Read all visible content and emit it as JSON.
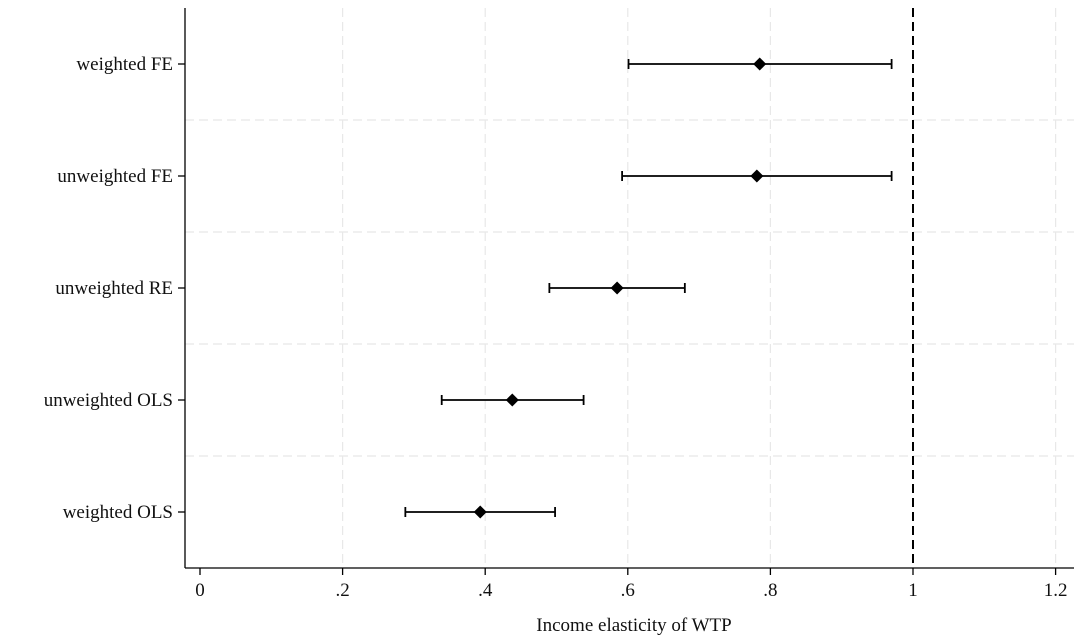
{
  "chart_data": {
    "type": "scatter",
    "subtype": "coefficient-plot",
    "title": "",
    "xlabel": "Income elasticity of WTP",
    "ylabel": "",
    "xlim": [
      -0.02,
      1.22
    ],
    "x_ticks": [
      {
        "value": 0,
        "label": "0"
      },
      {
        "value": 0.2,
        "label": ".2"
      },
      {
        "value": 0.4,
        "label": ".4"
      },
      {
        "value": 0.6,
        "label": ".6"
      },
      {
        "value": 0.8,
        "label": ".8"
      },
      {
        "value": 1.0,
        "label": "1"
      },
      {
        "value": 1.2,
        "label": "1.2"
      }
    ],
    "reference_line": {
      "x": 1.0,
      "style": "dashed"
    },
    "grid": true,
    "marker": "diamond",
    "colors": {
      "marker": "#000000",
      "grid": "#e8e8e8",
      "axis": "#000000"
    },
    "estimates": [
      {
        "label": "weighted FE",
        "estimate": 0.785,
        "ci_low": 0.601,
        "ci_high": 0.97
      },
      {
        "label": "unweighted FE",
        "estimate": 0.781,
        "ci_low": 0.592,
        "ci_high": 0.97
      },
      {
        "label": "unweighted RE",
        "estimate": 0.585,
        "ci_low": 0.49,
        "ci_high": 0.68
      },
      {
        "label": "unweighted OLS",
        "estimate": 0.438,
        "ci_low": 0.339,
        "ci_high": 0.538
      },
      {
        "label": "weighted OLS",
        "estimate": 0.393,
        "ci_low": 0.288,
        "ci_high": 0.498
      }
    ]
  }
}
